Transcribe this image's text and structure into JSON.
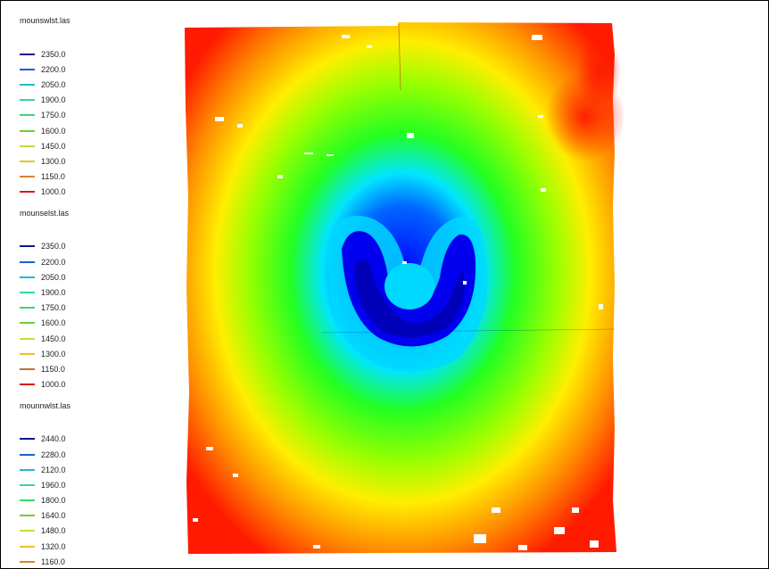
{
  "legend": {
    "layers": [
      {
        "name": "mounswlst.las",
        "entries": [
          {
            "value": "2350.0",
            "color": "#0a1a8c"
          },
          {
            "value": "2200.0",
            "color": "#1f5fd6"
          },
          {
            "value": "2050.0",
            "color": "#22b8d0"
          },
          {
            "value": "1900.0",
            "color": "#35d6a8"
          },
          {
            "value": "1750.0",
            "color": "#3fd66a"
          },
          {
            "value": "1600.0",
            "color": "#6ed03a"
          },
          {
            "value": "1450.0",
            "color": "#bfe03a"
          },
          {
            "value": "1300.0",
            "color": "#e8c32a"
          },
          {
            "value": "1150.0",
            "color": "#e07f2a"
          },
          {
            "value": "1000.0",
            "color": "#d81a1a"
          }
        ]
      },
      {
        "name": "mounselst.las",
        "entries": [
          {
            "value": "2350.0",
            "color": "#0a1a8c"
          },
          {
            "value": "2200.0",
            "color": "#1f5fd6"
          },
          {
            "value": "2050.0",
            "color": "#22b8d0"
          },
          {
            "value": "1900.0",
            "color": "#35d6a8"
          },
          {
            "value": "1750.0",
            "color": "#3fd66a"
          },
          {
            "value": "1600.0",
            "color": "#6ed03a"
          },
          {
            "value": "1450.0",
            "color": "#bfe03a"
          },
          {
            "value": "1300.0",
            "color": "#e8c32a"
          },
          {
            "value": "1150.0",
            "color": "#c0703a"
          },
          {
            "value": "1000.0",
            "color": "#d81a1a"
          }
        ]
      },
      {
        "name": "mounnwlst.las",
        "entries": [
          {
            "value": "2440.0",
            "color": "#0a1a8c"
          },
          {
            "value": "2280.0",
            "color": "#1f5fd6"
          },
          {
            "value": "2120.0",
            "color": "#22b8d0"
          },
          {
            "value": "1960.0",
            "color": "#35d6a8"
          },
          {
            "value": "1800.0",
            "color": "#3fd66a"
          },
          {
            "value": "1640.0",
            "color": "#6ed03a"
          },
          {
            "value": "1480.0",
            "color": "#bfe03a"
          },
          {
            "value": "1320.0",
            "color": "#e8c32a"
          },
          {
            "value": "1160.0",
            "color": "#e07f2a"
          }
        ]
      }
    ]
  },
  "map": {
    "palette": {
      "red": "#ff1a00",
      "orange": "#ff8a00",
      "yellow": "#ffee00",
      "lime": "#9cff00",
      "green": "#22ff22",
      "cyan": "#00e5ff",
      "blue": "#0000ff"
    }
  }
}
